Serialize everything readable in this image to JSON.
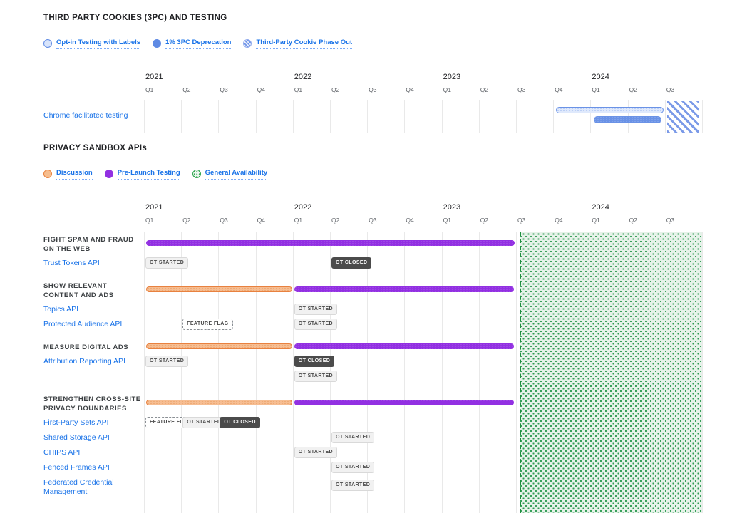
{
  "colors": {
    "link_blue": "#1a73e8",
    "title_text": "#202124",
    "axis_year": "#202124",
    "axis_quarter": "#5f6368",
    "grid": "#e9e9e9",
    "blue_outline_fill": "#dfe9fc",
    "blue_outline_border": "#6a92e6",
    "blue_solid": "#6a92e6",
    "orange_fill": "#f6bd92",
    "orange_border": "#e8813f",
    "purple": "#9230e2",
    "green_fill": "#e6f2e9",
    "green_dot": "#2e9b52",
    "green_border": "#1e8e3e",
    "badge_light_bg": "#f1f1f1",
    "badge_dark_bg": "#4b4b4b"
  },
  "chart_data": [
    {
      "type": "bar",
      "subtype": "gantt-timeline",
      "title": "THIRD PARTY COOKIES (3PC) AND TESTING",
      "x_ticks_years": [
        "2021",
        "2022",
        "2023",
        "2024"
      ],
      "x_ticks_quarters": [
        "2021 Q1",
        "2021 Q2",
        "2021 Q3",
        "2021 Q4",
        "2022 Q1",
        "2022 Q2",
        "2022 Q3",
        "2022 Q4",
        "2023 Q1",
        "2023 Q2",
        "2023 Q3",
        "2023 Q4",
        "2024 Q1",
        "2024 Q2",
        "2024 Q3"
      ],
      "legend": [
        {
          "label": "Opt-in Testing with Labels",
          "swatch": "outline-blue"
        },
        {
          "label": "1% 3PC Deprecation",
          "swatch": "solid-blue"
        },
        {
          "label": "Third-Party Cookie Phase Out",
          "swatch": "hatch-blue"
        }
      ],
      "rows": [
        {
          "label": [
            "Chrome facilitated testing"
          ],
          "bars": [
            {
              "series": "Opt-in Testing with Labels",
              "kind": "outline-blue",
              "start": "2023 Q4",
              "end": "2024 Q2"
            },
            {
              "series": "1% 3PC Deprecation",
              "kind": "solid-blue",
              "start": "2024 Q1",
              "end": "2024 Q2"
            }
          ],
          "regions": [
            {
              "series": "Third-Party Cookie Phase Out",
              "kind": "hatch-blue",
              "start": "2024 Q3",
              "end": "2024 Q3"
            }
          ]
        }
      ]
    },
    {
      "type": "bar",
      "subtype": "gantt-timeline",
      "title": "PRIVACY SANDBOX APIs",
      "x_ticks_years": [
        "2021",
        "2022",
        "2023",
        "2024"
      ],
      "x_ticks_quarters": [
        "2021 Q1",
        "2021 Q2",
        "2021 Q3",
        "2021 Q4",
        "2022 Q1",
        "2022 Q2",
        "2022 Q3",
        "2022 Q4",
        "2023 Q1",
        "2023 Q2",
        "2023 Q3",
        "2023 Q4",
        "2024 Q1",
        "2024 Q2",
        "2024 Q3"
      ],
      "legend": [
        {
          "label": "Discussion",
          "swatch": "outline-orange"
        },
        {
          "label": "Pre-Launch Testing",
          "swatch": "solid-purple"
        },
        {
          "label": "General Availability",
          "swatch": "dotted-green"
        }
      ],
      "regions": [
        {
          "series": "General Availability",
          "kind": "dotted-green-area",
          "start": "2023 Q3",
          "end": "2024 Q3"
        }
      ],
      "groups": [
        {
          "heading": [
            "FIGHT SPAM AND FRAUD",
            "ON THE WEB"
          ],
          "bars": [
            {
              "series": "Pre-Launch Testing",
              "kind": "solid-purple",
              "start": "2021 Q1",
              "end": "2023 Q2"
            }
          ],
          "apis": [
            {
              "label": [
                "Trust Tokens API"
              ],
              "badges": [
                {
                  "text": "OT STARTED",
                  "style": "light",
                  "quarter": "2021 Q1",
                  "row": 0
                },
                {
                  "text": "OT CLOSED",
                  "style": "dark",
                  "quarter": "2022 Q2",
                  "row": 0
                }
              ]
            }
          ]
        },
        {
          "heading": [
            "SHOW RELEVANT",
            "CONTENT AND ADS"
          ],
          "bars": [
            {
              "series": "Discussion",
              "kind": "outline-orange",
              "start": "2021 Q1",
              "end": "2021 Q4"
            },
            {
              "series": "Pre-Launch Testing",
              "kind": "solid-purple",
              "start": "2022 Q1",
              "end": "2023 Q2"
            }
          ],
          "apis": [
            {
              "label": [
                "Topics API"
              ],
              "badges": [
                {
                  "text": "OT STARTED",
                  "style": "light",
                  "quarter": "2022 Q1",
                  "row": 0
                }
              ]
            },
            {
              "label": [
                "Protected Audience API"
              ],
              "badges": [
                {
                  "text": "FEATURE FLAG",
                  "style": "flag",
                  "quarter": "2021 Q2",
                  "row": 0
                },
                {
                  "text": "OT STARTED",
                  "style": "light",
                  "quarter": "2022 Q1",
                  "row": 0
                }
              ]
            }
          ]
        },
        {
          "heading": [
            "MEASURE DIGITAL ADS"
          ],
          "bars": [
            {
              "series": "Discussion",
              "kind": "outline-orange",
              "start": "2021 Q1",
              "end": "2021 Q4"
            },
            {
              "series": "Pre-Launch Testing",
              "kind": "solid-purple",
              "start": "2022 Q1",
              "end": "2023 Q2"
            }
          ],
          "apis": [
            {
              "label": [
                "Attribution Reporting API"
              ],
              "badges": [
                {
                  "text": "OT STARTED",
                  "style": "light",
                  "quarter": "2021 Q1",
                  "row": 0
                },
                {
                  "text": "OT CLOSED",
                  "style": "dark",
                  "quarter": "2022 Q1",
                  "row": 0
                },
                {
                  "text": "OT STARTED",
                  "style": "light",
                  "quarter": "2022 Q1",
                  "row": 1
                }
              ]
            }
          ]
        },
        {
          "heading": [
            "STRENGTHEN CROSS-SITE",
            "PRIVACY BOUNDARIES"
          ],
          "bars": [
            {
              "series": "Discussion",
              "kind": "outline-orange",
              "start": "2021 Q1",
              "end": "2021 Q4"
            },
            {
              "series": "Pre-Launch Testing",
              "kind": "solid-purple",
              "start": "2022 Q1",
              "end": "2023 Q2"
            }
          ],
          "apis": [
            {
              "label": [
                "First-Party Sets API"
              ],
              "badges": [
                {
                  "text": "FEATURE FLAG",
                  "style": "flag",
                  "quarter": "2021 Q1",
                  "row": 0
                },
                {
                  "text": "OT STARTED",
                  "style": "light",
                  "quarter": "2021 Q2",
                  "row": 0
                },
                {
                  "text": "OT CLOSED",
                  "style": "dark",
                  "quarter": "2021 Q3",
                  "row": 0
                }
              ]
            },
            {
              "label": [
                "Shared Storage API"
              ],
              "badges": [
                {
                  "text": "OT STARTED",
                  "style": "light",
                  "quarter": "2022 Q2",
                  "row": 0
                }
              ]
            },
            {
              "label": [
                "CHIPS API"
              ],
              "badges": [
                {
                  "text": "OT STARTED",
                  "style": "light",
                  "quarter": "2022 Q1",
                  "row": 0
                }
              ]
            },
            {
              "label": [
                "Fenced Frames API"
              ],
              "badges": [
                {
                  "text": "OT STARTED",
                  "style": "light",
                  "quarter": "2022 Q2",
                  "row": 0
                }
              ]
            },
            {
              "label": [
                "Federated Credential",
                "Management"
              ],
              "badges": [
                {
                  "text": "OT STARTED",
                  "style": "light",
                  "quarter": "2022 Q2",
                  "row": 0
                }
              ]
            }
          ]
        }
      ]
    }
  ]
}
